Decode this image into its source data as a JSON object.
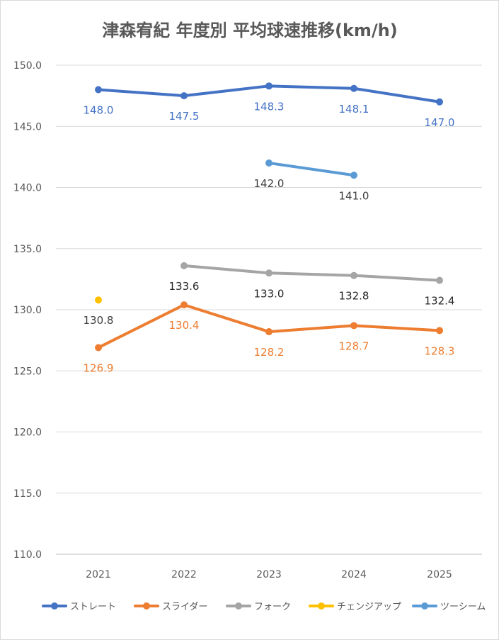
{
  "chart_data": {
    "type": "line",
    "title": "津森宥紀 年度別 平均球速推移(km/h)",
    "xlabel": "",
    "ylabel": "",
    "categories": [
      "2021",
      "2022",
      "2023",
      "2024",
      "2025"
    ],
    "ylim": [
      110,
      150
    ],
    "ytick_step": 5,
    "y_tick_labels": [
      "110.0",
      "115.0",
      "120.0",
      "125.0",
      "130.0",
      "135.0",
      "140.0",
      "145.0",
      "150.0"
    ],
    "grid": true,
    "legend_position": "bottom",
    "series": [
      {
        "name": "ストレート",
        "color": "#4472c4",
        "values": [
          148.0,
          147.5,
          148.3,
          148.1,
          147.0
        ],
        "labels": [
          "148.0",
          "147.5",
          "148.3",
          "148.1",
          "147.0"
        ],
        "label_position": "below",
        "label_color": "#4472c4"
      },
      {
        "name": "スライダー",
        "color": "#ed7d31",
        "values": [
          126.9,
          130.4,
          128.2,
          128.7,
          128.3
        ],
        "labels": [
          "126.9",
          "130.4",
          "128.2",
          "128.7",
          "128.3"
        ],
        "label_position": "below",
        "label_color": "#ed7d31"
      },
      {
        "name": "フォーク",
        "color": "#a5a5a5",
        "values": [
          null,
          133.6,
          133.0,
          132.8,
          132.4
        ],
        "labels": [
          null,
          "133.6",
          "133.0",
          "132.8",
          "132.4"
        ],
        "label_position": "below",
        "label_color": "#262626"
      },
      {
        "name": "チェンジアップ",
        "color": "#ffc000",
        "values": [
          130.8,
          null,
          null,
          null,
          null
        ],
        "labels": [
          "130.8",
          null,
          null,
          null,
          null
        ],
        "label_position": "below",
        "label_color": "#404040"
      },
      {
        "name": "ツーシーム",
        "color": "#5b9bd5",
        "values": [
          null,
          null,
          142.0,
          141.0,
          null
        ],
        "labels": [
          null,
          null,
          "142.0",
          "141.0",
          null
        ],
        "label_position": "below",
        "label_color": "#404040"
      }
    ]
  }
}
